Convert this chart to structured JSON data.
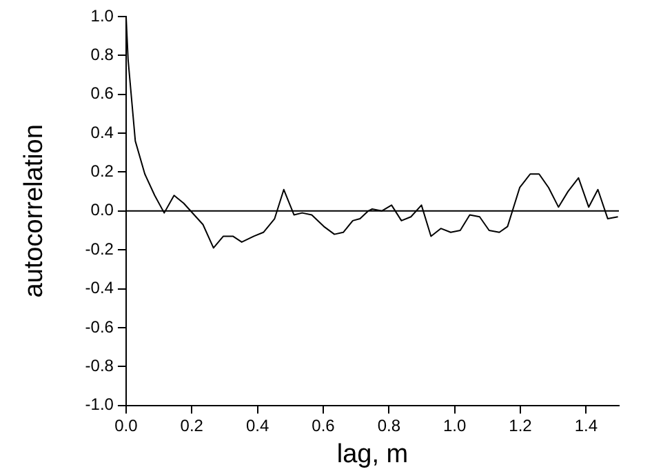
{
  "chart_data": {
    "type": "line",
    "xlabel": "lag, m",
    "ylabel": "autocorrelation",
    "x": [
      0,
      0.006,
      0.028,
      0.057,
      0.087,
      0.116,
      0.146,
      0.175,
      0.234,
      0.266,
      0.296,
      0.325,
      0.352,
      0.389,
      0.418,
      0.452,
      0.48,
      0.511,
      0.536,
      0.565,
      0.602,
      0.634,
      0.661,
      0.69,
      0.712,
      0.737,
      0.749,
      0.778,
      0.808,
      0.838,
      0.867,
      0.899,
      0.928,
      0.958,
      0.988,
      1.017,
      1.046,
      1.076,
      1.105,
      1.136,
      1.161,
      1.198,
      1.23,
      1.257,
      1.286,
      1.316,
      1.345,
      1.377,
      1.408,
      1.436,
      1.466,
      1.497
    ],
    "series": [
      {
        "color": "#000000",
        "values": [
          1.0,
          0.78,
          0.36,
          0.19,
          0.08,
          -0.01,
          0.08,
          0.04,
          -0.07,
          -0.19,
          -0.13,
          -0.13,
          -0.16,
          -0.13,
          -0.11,
          -0.04,
          0.11,
          -0.02,
          -0.01,
          -0.02,
          -0.08,
          -0.12,
          -0.11,
          -0.05,
          -0.04,
          0.0,
          0.01,
          0.0,
          0.03,
          -0.05,
          -0.03,
          0.03,
          -0.13,
          -0.09,
          -0.11,
          -0.1,
          -0.02,
          -0.03,
          -0.1,
          -0.11,
          -0.08,
          0.12,
          0.19,
          0.19,
          0.12,
          0.02,
          0.1,
          0.17,
          0.02,
          0.11,
          -0.04,
          -0.03
        ]
      }
    ],
    "xlim": [
      0,
      1.5
    ],
    "xticks": [
      {
        "value": 0,
        "label": "0.0"
      },
      {
        "value": 0.2,
        "label": "0.2"
      },
      {
        "value": 0.4,
        "label": "0.4"
      },
      {
        "value": 0.6,
        "label": "0.6"
      },
      {
        "value": 0.8,
        "label": "0.8"
      },
      {
        "value": 1,
        "label": "1.0"
      },
      {
        "value": 1.2,
        "label": "1.2"
      },
      {
        "value": 1.4,
        "label": "1.4"
      }
    ],
    "ylim": [
      -1,
      1
    ],
    "yticks": [
      {
        "value": -1,
        "label": "-1.0"
      },
      {
        "value": -0.8,
        "label": "-0.8"
      },
      {
        "value": -0.6,
        "label": "-0.6"
      },
      {
        "value": -0.4,
        "label": "-0.4"
      },
      {
        "value": -0.2,
        "label": "-0.2"
      },
      {
        "value": 0,
        "label": "0.0"
      },
      {
        "value": 0.2,
        "label": "0.2"
      },
      {
        "value": 0.4,
        "label": "0.4"
      },
      {
        "value": 0.6,
        "label": "0.6"
      },
      {
        "value": 0.8,
        "label": "0.8"
      },
      {
        "value": 1,
        "label": "1.0"
      }
    ],
    "ref_lines": [
      {
        "axis": "y",
        "value": 0,
        "color": "#000000"
      }
    ],
    "grid": false,
    "legend": false,
    "marker": "none",
    "line_style": "solid"
  }
}
